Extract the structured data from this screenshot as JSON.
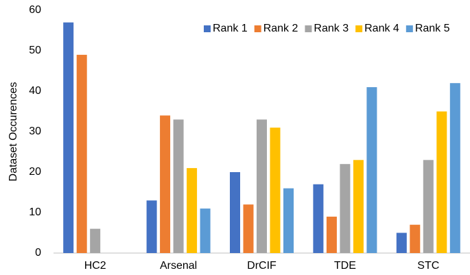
{
  "chart_data": {
    "type": "bar",
    "ylabel": "Dataset Occurences",
    "categories": [
      "HC2",
      "Arsenal",
      "DrCIF",
      "TDE",
      "STC"
    ],
    "series": [
      {
        "name": "Rank 1",
        "color": "#4472c4",
        "values": [
          57,
          13,
          20,
          17,
          5
        ]
      },
      {
        "name": "Rank 2",
        "color": "#ed7d31",
        "values": [
          49,
          34,
          12,
          9,
          7
        ]
      },
      {
        "name": "Rank 3",
        "color": "#a5a5a5",
        "values": [
          6,
          33,
          33,
          22,
          23
        ]
      },
      {
        "name": "Rank 4",
        "color": "#ffc000",
        "values": [
          0,
          21,
          31,
          23,
          35
        ]
      },
      {
        "name": "Rank 5",
        "color": "#5b9bd5",
        "values": [
          0,
          11,
          16,
          41,
          42
        ]
      }
    ],
    "ylim": [
      0,
      60
    ],
    "yticks": [
      0,
      10,
      20,
      30,
      40,
      50,
      60
    ],
    "grid": false,
    "legend": "top-right"
  }
}
